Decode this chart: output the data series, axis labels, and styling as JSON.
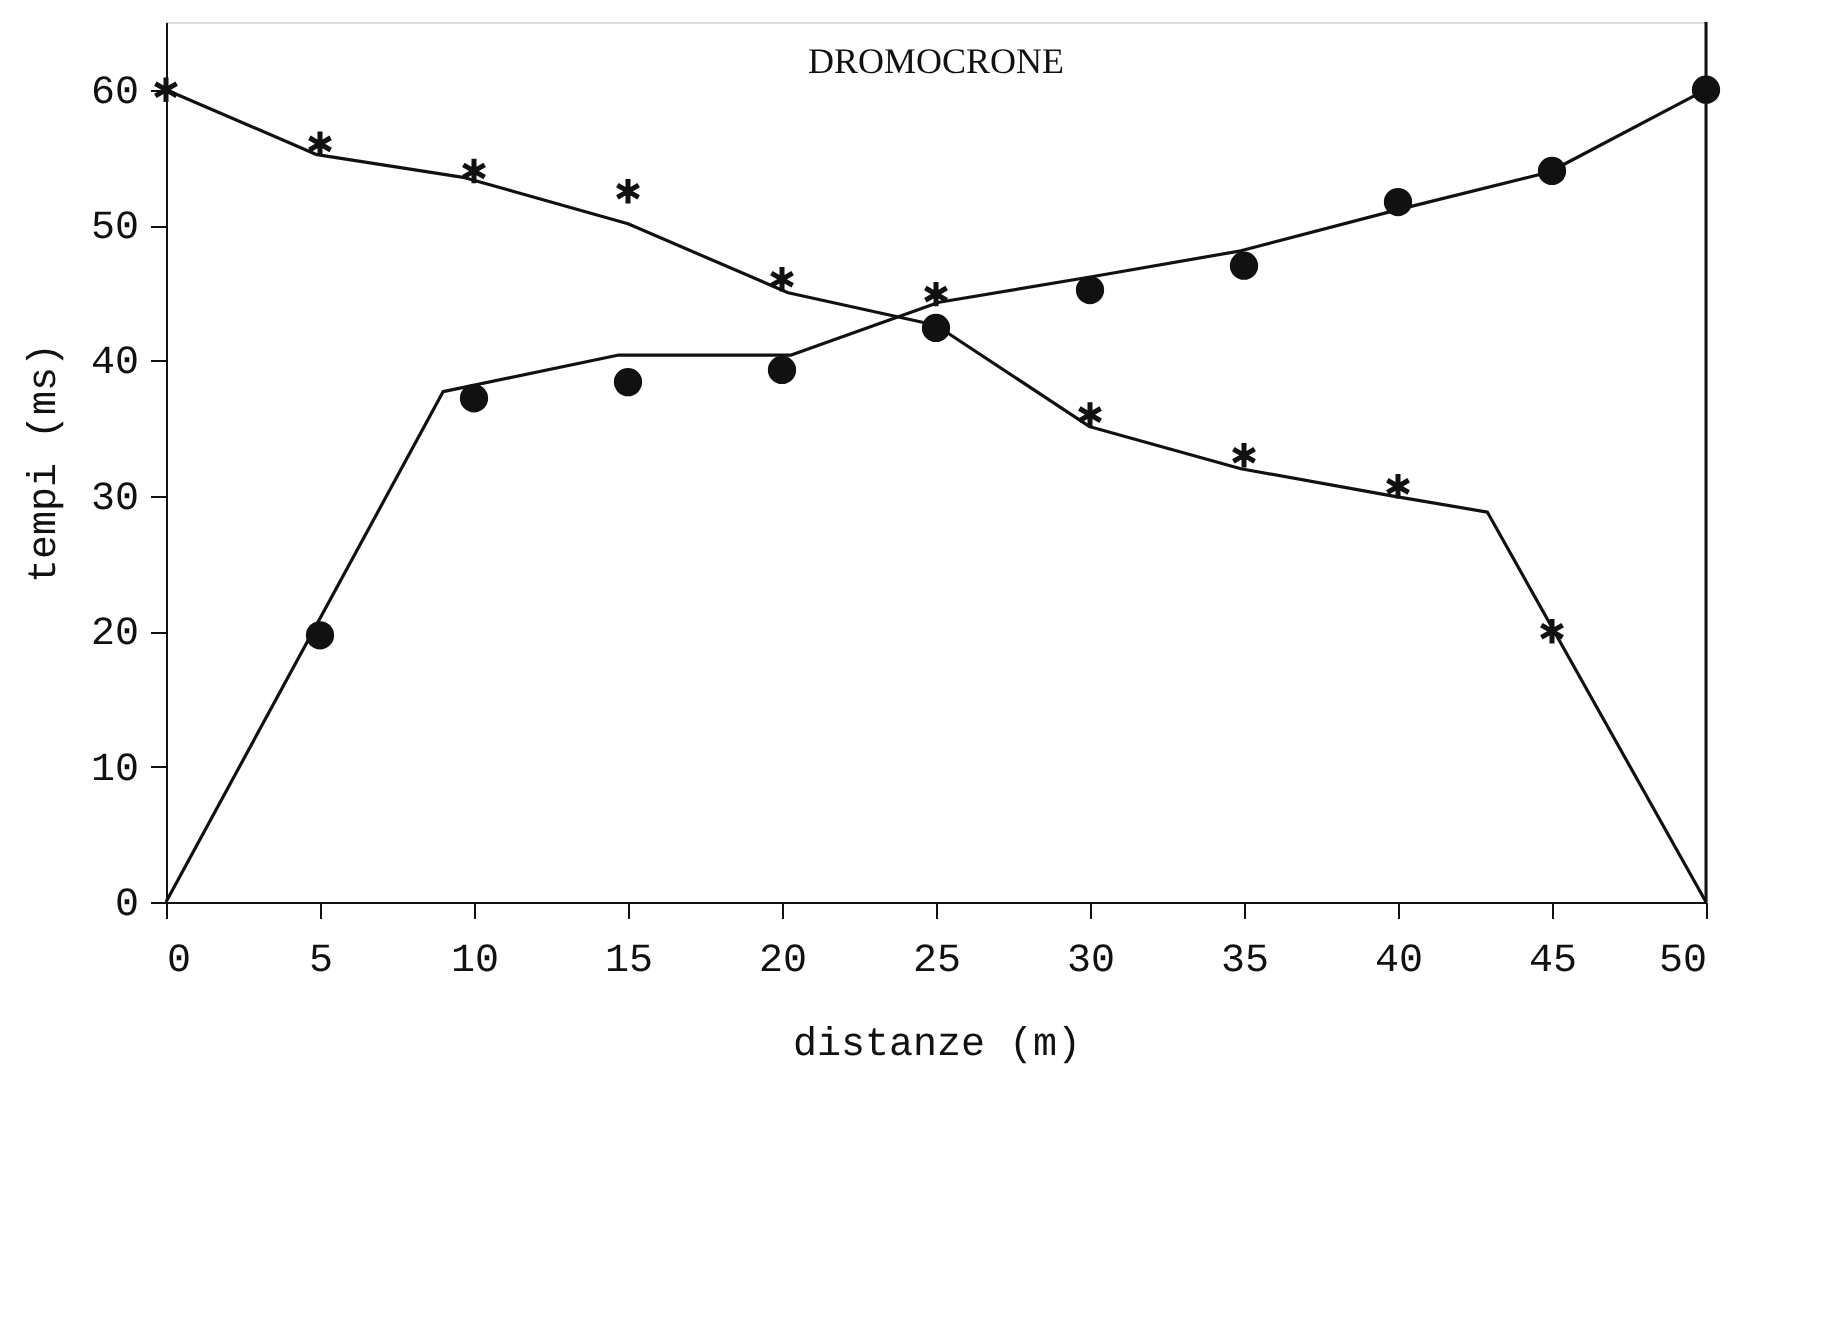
{
  "chart_data": {
    "type": "line",
    "title": "DROMOCRONE",
    "xlabel": "distanze (m)",
    "ylabel": "tempi (ms)",
    "xlim": [
      0,
      50
    ],
    "xticks": [
      0,
      5,
      10,
      15,
      20,
      25,
      30,
      35,
      40,
      45,
      50
    ],
    "ylim": [
      0,
      65
    ],
    "yticks": [
      0,
      10,
      20,
      30,
      40,
      50,
      60
    ],
    "grid": false,
    "series": [
      {
        "color": "#111111",
        "marker": "none",
        "line_style": "solid",
        "x": [
          0,
          9,
          14.7,
          20.3,
          25.1,
          30.1,
          34.9,
          40.1,
          44.9,
          50
        ],
        "values": [
          0,
          37.7,
          40.4,
          40.4,
          44.3,
          46.2,
          48.1,
          51.2,
          53.9,
          60
        ]
      },
      {
        "color": "#111111",
        "marker": "none",
        "line_style": "solid",
        "x": [
          0,
          4.9,
          9.7,
          15,
          20.2,
          25,
          30,
          34.9,
          39.8,
          42.9,
          50
        ],
        "values": [
          60,
          55.2,
          53.5,
          50.1,
          45,
          42.6,
          35.1,
          32,
          30,
          28.8,
          0
        ]
      },
      {
        "type": "scatter",
        "color": "#111111",
        "marker": "circle",
        "x": [
          5,
          10,
          15,
          20,
          25,
          30,
          35,
          40,
          45,
          50
        ],
        "values": [
          19.7,
          37.2,
          38.4,
          39.3,
          42.4,
          45.2,
          47,
          51.7,
          54,
          60
        ]
      },
      {
        "type": "scatter",
        "color": "#111111",
        "marker": "cross",
        "x": [
          0,
          5,
          10,
          15,
          20,
          25,
          30,
          35,
          40,
          45
        ],
        "values": [
          60,
          56,
          54,
          52.5,
          46,
          44.9,
          36,
          33,
          30.7,
          20
        ]
      }
    ]
  }
}
